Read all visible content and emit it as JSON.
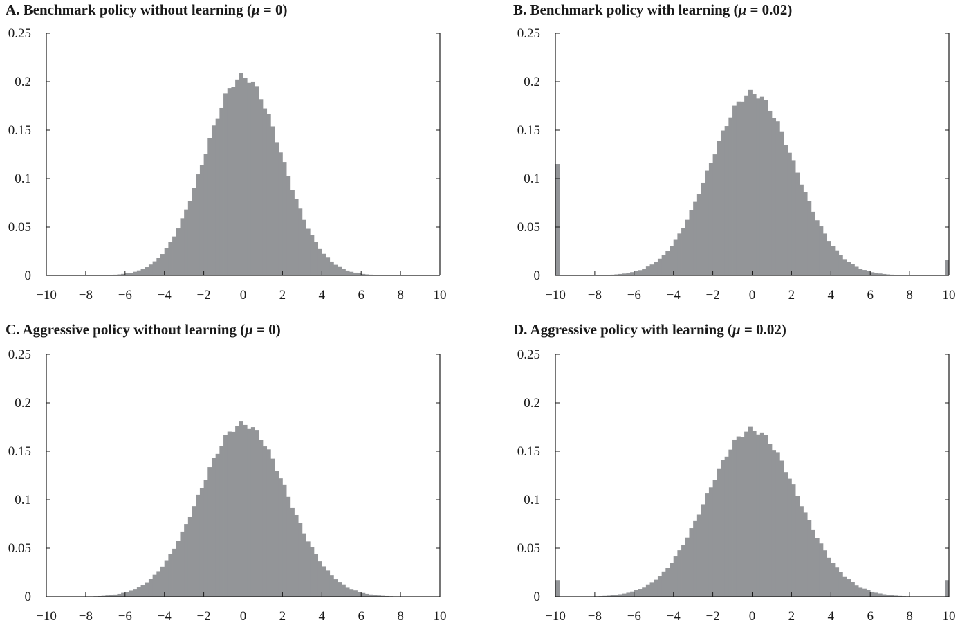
{
  "chart_data": [
    {
      "type": "bar",
      "title": "A.  Benchmark policy without learning (",
      "title_mu": "μ",
      "title_suffix": " = 0)",
      "xlim": [
        -10,
        10
      ],
      "ylim": [
        0,
        0.25
      ],
      "xticks": [
        "−10",
        "−8",
        "−6",
        "−4",
        "−2",
        "0",
        "2",
        "4",
        "6",
        "8",
        "10"
      ],
      "yticks": [
        "0",
        "0.05",
        "0.1",
        "0.15",
        "0.2",
        "0.25"
      ],
      "bin_width": 0.2,
      "bar_color": "#939598",
      "sigma": 1.95,
      "peak": 0.205,
      "left_edge_mass": 0,
      "right_edge_mass": 0
    },
    {
      "type": "bar",
      "title": "B.  Benchmark policy with learning (",
      "title_mu": "μ",
      "title_suffix": " = 0.02)",
      "xlim": [
        -10,
        10
      ],
      "ylim": [
        0,
        0.25
      ],
      "xticks": [
        "−10",
        "−8",
        "−6",
        "−4",
        "−2",
        "0",
        "2",
        "4",
        "6",
        "8",
        "10"
      ],
      "yticks": [
        "0",
        "0.05",
        "0.1",
        "0.15",
        "0.2",
        "0.25"
      ],
      "bin_width": 0.2,
      "bar_color": "#939598",
      "sigma": 2.15,
      "peak": 0.188,
      "left_edge_mass": 0.115,
      "right_edge_mass": 0.016
    },
    {
      "type": "bar",
      "title": "C.  Aggressive policy without learning (",
      "title_mu": "μ",
      "title_suffix": " = 0)",
      "xlim": [
        -10,
        10
      ],
      "ylim": [
        0,
        0.25
      ],
      "xticks": [
        "−10",
        "−8",
        "−6",
        "−4",
        "−2",
        "0",
        "2",
        "4",
        "6",
        "8",
        "10"
      ],
      "yticks": [
        "0",
        "0.05",
        "0.1",
        "0.15",
        "0.2",
        "0.25"
      ],
      "bin_width": 0.2,
      "bar_color": "#939598",
      "sigma": 2.2,
      "peak": 0.178,
      "left_edge_mass": 0,
      "right_edge_mass": 0
    },
    {
      "type": "bar",
      "title": "D.  Aggressive policy with learning (",
      "title_mu": "μ",
      "title_suffix": " = 0.02)",
      "xlim": [
        -10,
        10
      ],
      "ylim": [
        0,
        0.25
      ],
      "xticks": [
        "−10",
        "−8",
        "−6",
        "−4",
        "−2",
        "0",
        "2",
        "4",
        "6",
        "8",
        "10"
      ],
      "yticks": [
        "0",
        "0.05",
        "0.1",
        "0.15",
        "0.2",
        "0.25"
      ],
      "bin_width": 0.2,
      "bar_color": "#939598",
      "sigma": 2.3,
      "peak": 0.172,
      "left_edge_mass": 0.017,
      "right_edge_mass": 0.017
    }
  ]
}
